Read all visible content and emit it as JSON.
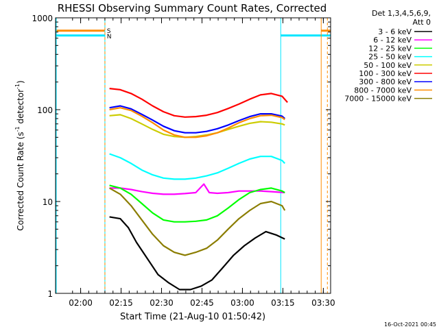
{
  "chart_data": {
    "type": "line",
    "title": "RHESSI Observing Summary Count Rates, Corrected",
    "xlabel": "Start Time (21-Aug-10 01:50:42)",
    "ylabel_main": "Corrected Count Rate (s",
    "ylabel_sup1": "-1",
    "ylabel_mid": " detector",
    "ylabel_sup2": "-1",
    "ylabel_end": ")",
    "yscale": "log",
    "ylim": [
      1,
      1000
    ],
    "xlim_minutes": [
      0,
      102
    ],
    "x_tick_labels": [
      {
        "label": "02:00",
        "minutes": 9.3
      },
      {
        "label": "02:15",
        "minutes": 24.3
      },
      {
        "label": "02:30",
        "minutes": 39.3
      },
      {
        "label": "02:45",
        "minutes": 54.3
      },
      {
        "label": "03:00",
        "minutes": 69.3
      },
      {
        "label": "03:15",
        "minutes": 84.3
      },
      {
        "label": "03:30",
        "minutes": 99.3
      }
    ],
    "y_tick_labels": [
      {
        "label": "1",
        "value": 1
      },
      {
        "label": "10",
        "value": 10
      },
      {
        "label": "100",
        "value": 100
      },
      {
        "label": "1000",
        "value": 1000
      }
    ],
    "legend_header": [
      "Det 1,3,4,5,6,9,",
      "Att 0"
    ],
    "flags": {
      "S": "S",
      "N": "N"
    },
    "series": [
      {
        "name": "3 - 6 keV",
        "color": "#000000",
        "points": [
          [
            20,
            6.8
          ],
          [
            24,
            6.5
          ],
          [
            27,
            5.2
          ],
          [
            30,
            3.6
          ],
          [
            34,
            2.4
          ],
          [
            38,
            1.6
          ],
          [
            42,
            1.3
          ],
          [
            46,
            1.1
          ],
          [
            50,
            1.1
          ],
          [
            54,
            1.2
          ],
          [
            58,
            1.4
          ],
          [
            62,
            1.9
          ],
          [
            66,
            2.6
          ],
          [
            70,
            3.3
          ],
          [
            74,
            4.0
          ],
          [
            78,
            4.7
          ],
          [
            82,
            4.3
          ],
          [
            85,
            3.9
          ]
        ]
      },
      {
        "name": "6 - 12 keV",
        "color": "#ff00ff",
        "points": [
          [
            20,
            14.0
          ],
          [
            24,
            14.0
          ],
          [
            28,
            13.5
          ],
          [
            32,
            12.8
          ],
          [
            36,
            12.3
          ],
          [
            40,
            12.0
          ],
          [
            44,
            12.0
          ],
          [
            48,
            12.2
          ],
          [
            52,
            12.5
          ],
          [
            55,
            15.5
          ],
          [
            57,
            12.5
          ],
          [
            60,
            12.3
          ],
          [
            64,
            12.5
          ],
          [
            68,
            13.0
          ],
          [
            72,
            13.0
          ],
          [
            76,
            13.0
          ],
          [
            80,
            12.8
          ],
          [
            85,
            12.5
          ]
        ]
      },
      {
        "name": "12 - 25 keV",
        "color": "#00ff00",
        "points": [
          [
            20,
            15.0
          ],
          [
            24,
            14.0
          ],
          [
            28,
            12.0
          ],
          [
            32,
            9.5
          ],
          [
            36,
            7.5
          ],
          [
            40,
            6.3
          ],
          [
            44,
            6.0
          ],
          [
            48,
            6.0
          ],
          [
            52,
            6.1
          ],
          [
            56,
            6.3
          ],
          [
            60,
            7.0
          ],
          [
            64,
            8.5
          ],
          [
            68,
            10.5
          ],
          [
            72,
            12.5
          ],
          [
            76,
            13.5
          ],
          [
            80,
            14.0
          ],
          [
            84,
            13.0
          ],
          [
            85,
            12.5
          ]
        ]
      },
      {
        "name": "25 - 50 keV",
        "color": "#00ffff",
        "points": [
          [
            20,
            33
          ],
          [
            24,
            30
          ],
          [
            28,
            26
          ],
          [
            32,
            22
          ],
          [
            36,
            19.5
          ],
          [
            40,
            18
          ],
          [
            44,
            17.5
          ],
          [
            48,
            17.5
          ],
          [
            52,
            18
          ],
          [
            56,
            19
          ],
          [
            60,
            20.5
          ],
          [
            64,
            23
          ],
          [
            68,
            26
          ],
          [
            72,
            29
          ],
          [
            76,
            31
          ],
          [
            80,
            31
          ],
          [
            84,
            28
          ],
          [
            85,
            26
          ]
        ]
      },
      {
        "name": "50 - 100 keV",
        "color": "#cccc00",
        "points": [
          [
            20,
            86
          ],
          [
            24,
            88
          ],
          [
            28,
            80
          ],
          [
            32,
            70
          ],
          [
            36,
            61
          ],
          [
            40,
            54
          ],
          [
            44,
            51
          ],
          [
            48,
            50
          ],
          [
            52,
            51
          ],
          [
            56,
            53
          ],
          [
            60,
            56
          ],
          [
            64,
            61
          ],
          [
            68,
            66
          ],
          [
            72,
            71
          ],
          [
            76,
            74
          ],
          [
            80,
            73
          ],
          [
            84,
            70
          ],
          [
            85,
            68
          ]
        ]
      },
      {
        "name": "100 - 300 keV",
        "color": "#ff0000",
        "points": [
          [
            20,
            170
          ],
          [
            24,
            165
          ],
          [
            28,
            150
          ],
          [
            32,
            130
          ],
          [
            36,
            110
          ],
          [
            40,
            95
          ],
          [
            44,
            86
          ],
          [
            48,
            83
          ],
          [
            52,
            84
          ],
          [
            56,
            87
          ],
          [
            60,
            93
          ],
          [
            64,
            103
          ],
          [
            68,
            115
          ],
          [
            72,
            130
          ],
          [
            76,
            145
          ],
          [
            80,
            150
          ],
          [
            84,
            140
          ],
          [
            86,
            120
          ]
        ]
      },
      {
        "name": "300 - 800 keV",
        "color": "#0000ff",
        "points": [
          [
            20,
            105
          ],
          [
            24,
            110
          ],
          [
            28,
            102
          ],
          [
            32,
            89
          ],
          [
            36,
            77
          ],
          [
            40,
            66
          ],
          [
            44,
            59
          ],
          [
            48,
            56
          ],
          [
            52,
            56
          ],
          [
            56,
            58
          ],
          [
            60,
            62
          ],
          [
            64,
            68
          ],
          [
            68,
            76
          ],
          [
            72,
            84
          ],
          [
            76,
            90
          ],
          [
            80,
            90
          ],
          [
            84,
            85
          ],
          [
            85,
            80
          ]
        ]
      },
      {
        "name": "800 - 7000 keV",
        "color": "#ff8c00",
        "points": [
          [
            20,
            100
          ],
          [
            24,
            105
          ],
          [
            28,
            98
          ],
          [
            32,
            85
          ],
          [
            36,
            72
          ],
          [
            40,
            60
          ],
          [
            44,
            53
          ],
          [
            48,
            50
          ],
          [
            52,
            50
          ],
          [
            56,
            52
          ],
          [
            60,
            56
          ],
          [
            64,
            63
          ],
          [
            68,
            72
          ],
          [
            72,
            80
          ],
          [
            76,
            86
          ],
          [
            80,
            87
          ],
          [
            84,
            82
          ],
          [
            85,
            78
          ]
        ]
      },
      {
        "name": "7000 - 15000 keV",
        "color": "#8b7d00",
        "points": [
          [
            20,
            14.0
          ],
          [
            24,
            12.0
          ],
          [
            28,
            9.0
          ],
          [
            32,
            6.3
          ],
          [
            36,
            4.4
          ],
          [
            40,
            3.3
          ],
          [
            44,
            2.8
          ],
          [
            48,
            2.6
          ],
          [
            52,
            2.8
          ],
          [
            56,
            3.1
          ],
          [
            60,
            3.8
          ],
          [
            64,
            5.0
          ],
          [
            68,
            6.5
          ],
          [
            72,
            8.0
          ],
          [
            76,
            9.5
          ],
          [
            80,
            10.0
          ],
          [
            84,
            9.0
          ],
          [
            85,
            8.0
          ]
        ]
      }
    ]
  },
  "footer": {
    "date": "16-Oct-2021 00:45"
  }
}
